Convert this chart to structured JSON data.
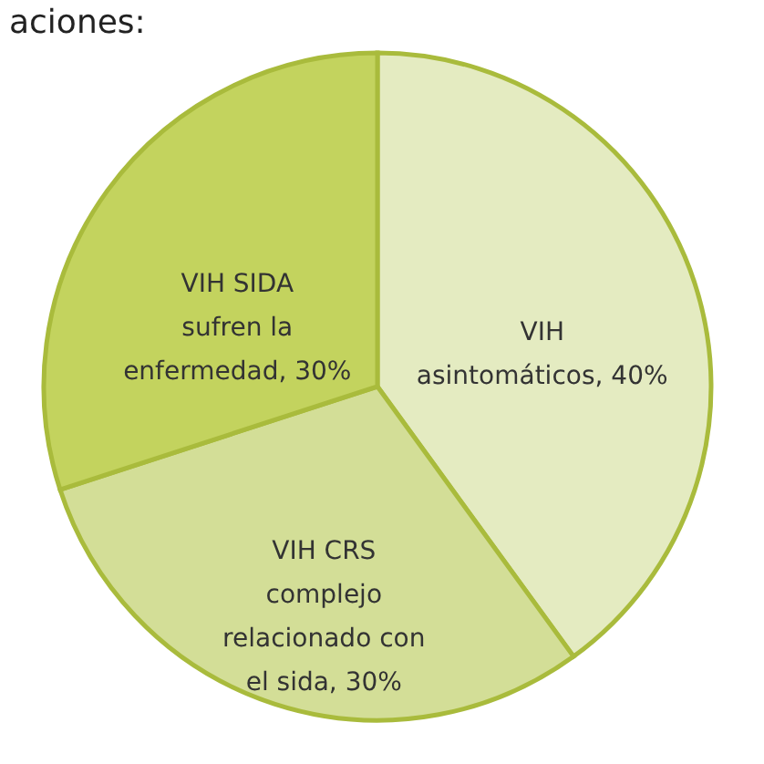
{
  "chart_data": {
    "type": "pie",
    "title": "aciones:",
    "categories": [
      "VIH\nasintomáticos",
      "VIH CRS\ncomplejo\nrelacionado con\nel sida",
      "VIH SIDA\nsufren la\nenfermedad"
    ],
    "values": [
      40,
      30,
      30
    ],
    "value_labels": [
      "40%",
      "30%",
      "30%"
    ],
    "colors": [
      "#e4ebc1",
      "#d3de97",
      "#c3d35e"
    ],
    "legend": false
  }
}
